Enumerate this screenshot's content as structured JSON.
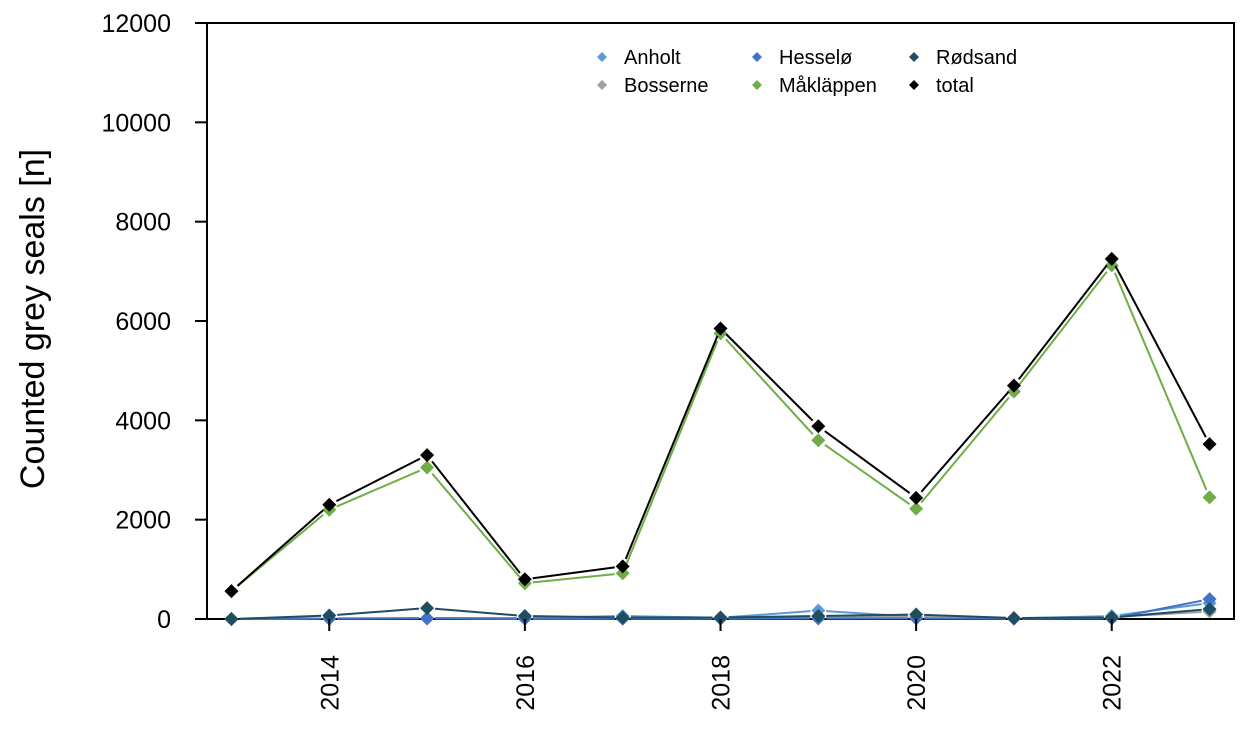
{
  "chart_data": {
    "type": "line",
    "ylabel": "Counted grey seals [n]",
    "xlabel": "",
    "xlim": [
      2012.75,
      2023.25
    ],
    "ylim": [
      0,
      12000
    ],
    "x_ticks": [
      2014,
      2016,
      2018,
      2020,
      2022
    ],
    "x_tick_labels": [
      "2014",
      "2016",
      "2018",
      "2020",
      "2022"
    ],
    "y_ticks": [
      0,
      2000,
      4000,
      6000,
      8000,
      10000,
      12000
    ],
    "y_tick_labels": [
      "0",
      "2000",
      "4000",
      "6000",
      "8000",
      "10000",
      "12000"
    ],
    "grid": false,
    "legend_position": "top-center",
    "x": [
      2013,
      2014,
      2015,
      2016,
      2017,
      2018,
      2019,
      2020,
      2021,
      2022,
      2023
    ],
    "series": [
      {
        "name": "Anholt",
        "color": "#5b9bd5",
        "values": [
          0,
          15,
          20,
          20,
          60,
          25,
          170,
          40,
          15,
          60,
          320
        ]
      },
      {
        "name": "Bosserne",
        "color": "#a0a0a0",
        "values": [
          0,
          10,
          10,
          5,
          10,
          10,
          40,
          40,
          10,
          40,
          150
        ]
      },
      {
        "name": "Hesselø",
        "color": "#4472c4",
        "values": [
          0,
          5,
          10,
          5,
          5,
          5,
          10,
          10,
          5,
          10,
          400
        ]
      },
      {
        "name": "Måkläppen",
        "color": "#70ad47",
        "values": [
          560,
          2200,
          3050,
          720,
          920,
          5750,
          3600,
          2220,
          4580,
          7120,
          2450
        ]
      },
      {
        "name": "Rødsand",
        "color": "#1f4e60",
        "values": [
          0,
          70,
          220,
          60,
          30,
          30,
          60,
          90,
          20,
          30,
          200
        ]
      },
      {
        "name": "total",
        "color": "#000000",
        "values": [
          560,
          2300,
          3300,
          800,
          1060,
          5850,
          3880,
          2440,
          4700,
          7250,
          3520
        ]
      }
    ]
  }
}
